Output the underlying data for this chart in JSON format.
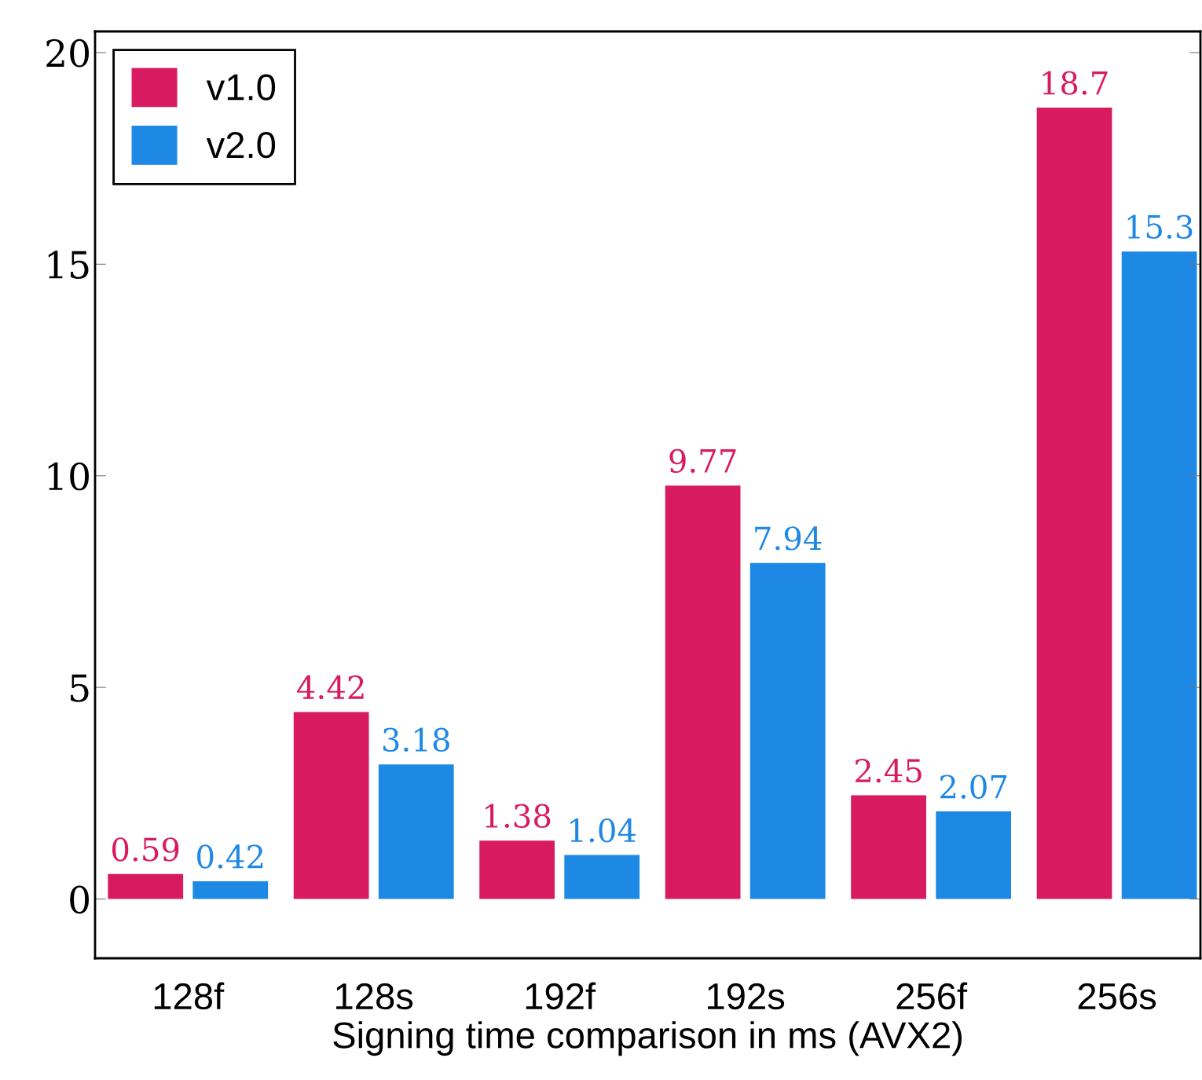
{
  "chart_data": {
    "type": "bar",
    "xlabel": "Signing time comparison in ms (AVX2)",
    "categories": [
      "128f",
      "128s",
      "192f",
      "192s",
      "256f",
      "256s"
    ],
    "series": [
      {
        "name": "v1.0",
        "color": "#d81b60",
        "values": [
          0.59,
          4.42,
          1.38,
          9.77,
          2.45,
          18.7
        ]
      },
      {
        "name": "v2.0",
        "color": "#1e88e5",
        "values": [
          0.42,
          3.18,
          1.04,
          7.94,
          2.07,
          15.3
        ]
      }
    ],
    "ylim": [
      -1.4,
      20.5
    ],
    "yticks": [
      0,
      5,
      10,
      15,
      20
    ],
    "data_labels": true,
    "legend": "top left",
    "grid": false
  }
}
